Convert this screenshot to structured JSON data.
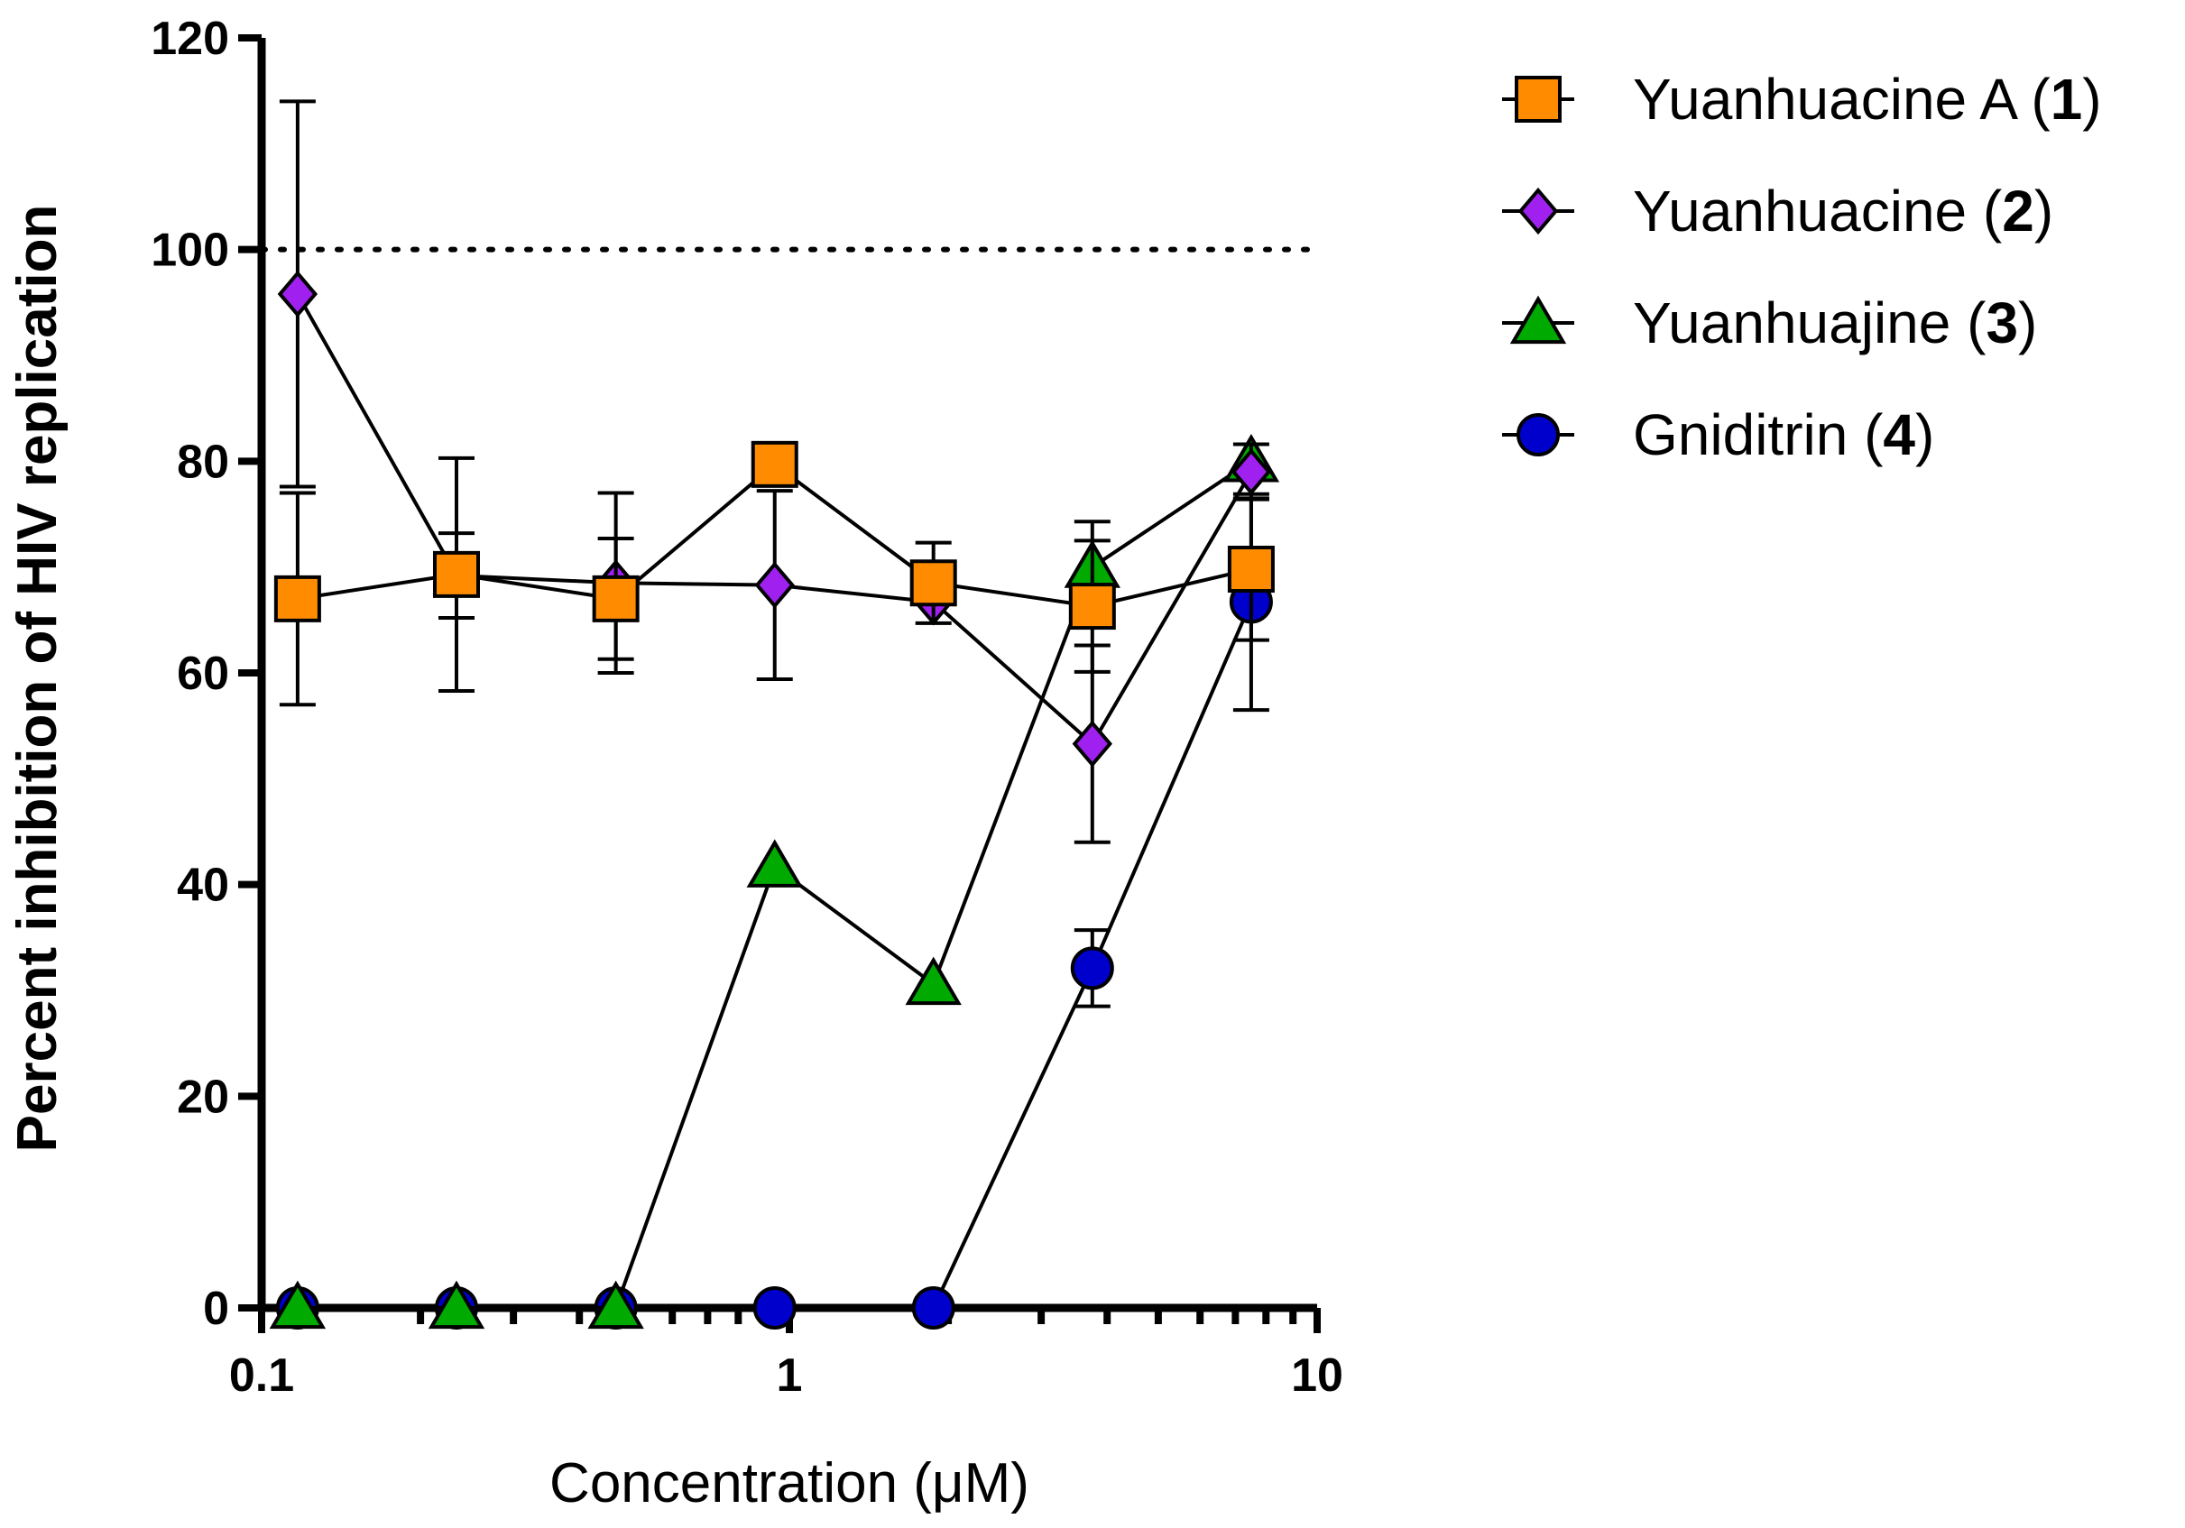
{
  "chart_data": {
    "type": "line",
    "title": "",
    "xlabel": "Concentration (μM)",
    "ylabel": "Percent inhibition of HIV replication",
    "xscale": "log",
    "xlim": [
      0.1,
      10
    ],
    "ylim": [
      0,
      120
    ],
    "x_ticks": [
      0.1,
      1,
      10
    ],
    "x_tick_labels": [
      "0.1",
      "1",
      "10"
    ],
    "y_ticks": [
      0,
      20,
      40,
      60,
      80,
      100,
      120
    ],
    "y_tick_labels": [
      "0",
      "20",
      "40",
      "60",
      "80",
      "100",
      "120"
    ],
    "reference_line": {
      "y": 100,
      "style": "dotted"
    },
    "x": [
      0.117,
      0.234,
      0.469,
      0.938,
      1.875,
      3.75,
      7.5
    ],
    "legend_position": "top-right",
    "series": [
      {
        "name": "Yuanhuacine A",
        "compound": "1",
        "marker": "square",
        "color": "#FF8C00",
        "values": [
          67,
          69.3,
          67,
          79.7,
          68.5,
          66.3,
          69.8
        ],
        "errors": [
          10,
          11,
          5.7,
          0,
          3.8,
          6.2,
          6.7
        ]
      },
      {
        "name": "Yuanhuacine",
        "compound": "2",
        "marker": "diamond",
        "color": "#A020F0",
        "values": [
          95.8,
          69.2,
          68.5,
          68.3,
          66.7,
          53.3,
          79
        ],
        "errors": [
          18.2,
          4,
          8.5,
          8.9,
          0,
          9.3,
          2.6
        ]
      },
      {
        "name": "Yuanhuajine",
        "compound": "3",
        "marker": "triangle",
        "color": "#00AA00",
        "values": [
          0,
          0,
          0,
          41.7,
          30.6,
          70,
          80
        ],
        "errors": [
          0,
          0,
          0,
          0,
          0,
          4.3,
          0
        ]
      },
      {
        "name": "Gniditrin",
        "compound": "4",
        "marker": "circle",
        "color": "#0000CC",
        "values": [
          0,
          0,
          0,
          0,
          0,
          32.1,
          66.7
        ],
        "errors": [
          0,
          0,
          0,
          0,
          0,
          3.6,
          10.2
        ]
      }
    ]
  }
}
